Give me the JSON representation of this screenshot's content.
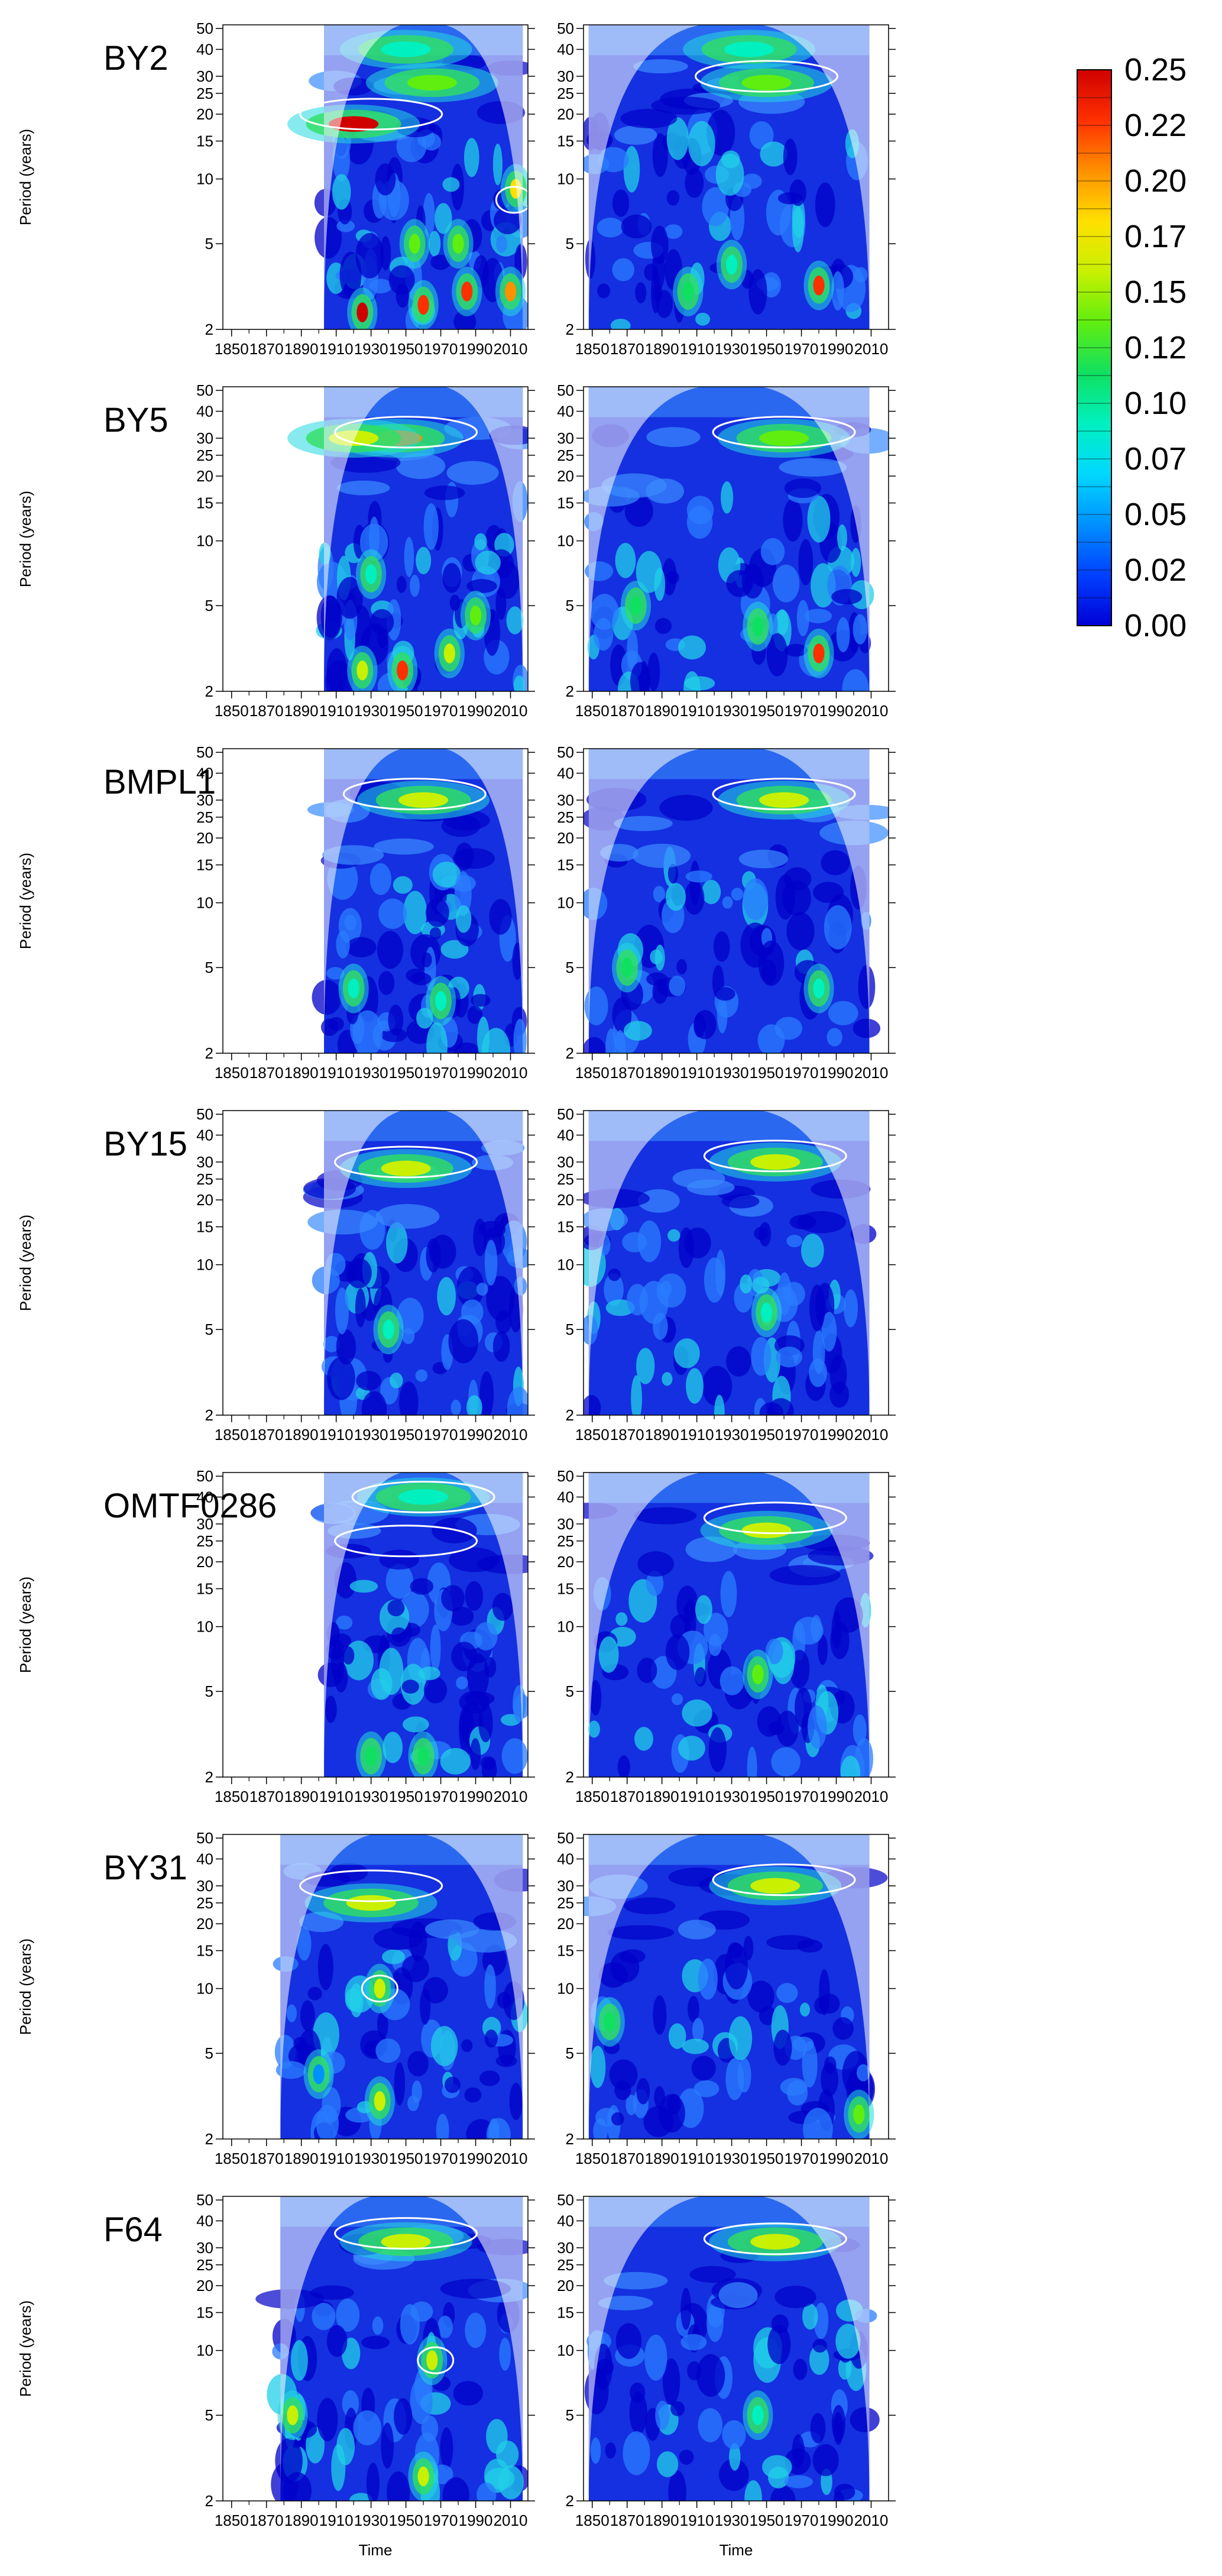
{
  "figure": {
    "time_label": "Time",
    "period_label": "Period (years)"
  },
  "colorbar": {
    "ticks": [
      "0.25",
      "0.22",
      "0.20",
      "0.17",
      "0.15",
      "0.12",
      "0.10",
      "0.07",
      "0.05",
      "0.02",
      "0.00"
    ],
    "range": [
      0,
      0.25
    ],
    "colors": [
      "#0000d6",
      "#0040ff",
      "#0090ff",
      "#00d8ff",
      "#00f0c0",
      "#10e060",
      "#60ee10",
      "#c8f000",
      "#ffe000",
      "#ff9000",
      "#ff3000",
      "#d00000"
    ]
  },
  "chart_data": {
    "type": "heatmap",
    "description_type": "wavelet power spectra",
    "x_tick_labels": [
      "1850",
      "1870",
      "1890",
      "1910",
      "1930",
      "1950",
      "1970",
      "1990",
      "2010"
    ],
    "y_tick_labels": [
      "50",
      "40",
      "30",
      "25",
      "20",
      "15",
      "10",
      "5",
      "2"
    ],
    "y_scale": "log",
    "xlim": [
      1845,
      2020
    ],
    "ylim": [
      2,
      52
    ],
    "xlabel": "Time",
    "ylabel": "Period (years)",
    "rows": [
      {
        "label": "BY2",
        "left": {
          "start": 1903,
          "end": 2017,
          "coi_peak": 1960,
          "hotspots": [
            {
              "x": 1920,
              "p": 18,
              "v": 0.25
            },
            {
              "x": 1925,
              "p": 2.4,
              "v": 0.24
            },
            {
              "x": 1960,
              "p": 2.6,
              "v": 0.22
            },
            {
              "x": 1985,
              "p": 3.0,
              "v": 0.22
            },
            {
              "x": 2010,
              "p": 3.0,
              "v": 0.2
            },
            {
              "x": 1965,
              "p": 28,
              "v": 0.14
            },
            {
              "x": 1950,
              "p": 40,
              "v": 0.1
            },
            {
              "x": 1955,
              "p": 5,
              "v": 0.13
            },
            {
              "x": 1980,
              "p": 5,
              "v": 0.14
            },
            {
              "x": 2013,
              "p": 9,
              "v": 0.18
            }
          ],
          "significant": [
            {
              "x": 1930,
              "p": 20
            },
            {
              "x": 2012,
              "p": 8
            }
          ]
        },
        "right": {
          "start": 1848,
          "end": 2009,
          "coi_peak": 1930,
          "hotspots": [
            {
              "x": 1950,
              "p": 28,
              "v": 0.14
            },
            {
              "x": 1980,
              "p": 3.2,
              "v": 0.22
            },
            {
              "x": 1905,
              "p": 3.0,
              "v": 0.12
            },
            {
              "x": 1930,
              "p": 4,
              "v": 0.1
            },
            {
              "x": 1940,
              "p": 40,
              "v": 0.08
            }
          ],
          "significant": [
            {
              "x": 1950,
              "p": 30
            }
          ]
        }
      },
      {
        "label": "BY5",
        "left": {
          "start": 1903,
          "end": 2017,
          "coi_peak": 1960,
          "hotspots": [
            {
              "x": 1945,
              "p": 30,
              "v": 0.21
            },
            {
              "x": 1920,
              "p": 30,
              "v": 0.15
            },
            {
              "x": 1948,
              "p": 2.5,
              "v": 0.22
            },
            {
              "x": 1925,
              "p": 2.5,
              "v": 0.17
            },
            {
              "x": 1975,
              "p": 3,
              "v": 0.15
            },
            {
              "x": 1930,
              "p": 7,
              "v": 0.1
            },
            {
              "x": 1990,
              "p": 4.5,
              "v": 0.14
            }
          ],
          "significant": [
            {
              "x": 1950,
              "p": 32
            }
          ]
        },
        "right": {
          "start": 1848,
          "end": 2009,
          "coi_peak": 1930,
          "hotspots": [
            {
              "x": 1960,
              "p": 30,
              "v": 0.14
            },
            {
              "x": 1980,
              "p": 3.0,
              "v": 0.22
            },
            {
              "x": 1875,
              "p": 5,
              "v": 0.12
            },
            {
              "x": 1945,
              "p": 4,
              "v": 0.12
            }
          ],
          "significant": [
            {
              "x": 1960,
              "p": 32
            }
          ]
        }
      },
      {
        "label": "BMPL1",
        "left": {
          "start": 1903,
          "end": 2017,
          "coi_peak": 1960,
          "hotspots": [
            {
              "x": 1960,
              "p": 30,
              "v": 0.16
            },
            {
              "x": 1920,
              "p": 4,
              "v": 0.1
            },
            {
              "x": 1970,
              "p": 3.5,
              "v": 0.1
            }
          ],
          "significant": [
            {
              "x": 1955,
              "p": 32
            }
          ]
        },
        "right": {
          "start": 1848,
          "end": 2009,
          "coi_peak": 1930,
          "hotspots": [
            {
              "x": 1960,
              "p": 30,
              "v": 0.15
            },
            {
              "x": 1870,
              "p": 5,
              "v": 0.12
            },
            {
              "x": 1980,
              "p": 4,
              "v": 0.1
            }
          ],
          "significant": [
            {
              "x": 1960,
              "p": 32
            }
          ]
        }
      },
      {
        "label": "BY15",
        "left": {
          "start": 1903,
          "end": 2017,
          "coi_peak": 1960,
          "hotspots": [
            {
              "x": 1950,
              "p": 28,
              "v": 0.15
            },
            {
              "x": 1940,
              "p": 5,
              "v": 0.09
            }
          ],
          "significant": [
            {
              "x": 1950,
              "p": 30
            }
          ]
        },
        "right": {
          "start": 1848,
          "end": 2009,
          "coi_peak": 1930,
          "hotspots": [
            {
              "x": 1955,
              "p": 30,
              "v": 0.15
            },
            {
              "x": 1950,
              "p": 6,
              "v": 0.09
            }
          ],
          "significant": [
            {
              "x": 1955,
              "p": 32
            }
          ]
        }
      },
      {
        "label": "OMTF0286",
        "left": {
          "start": 1903,
          "end": 2017,
          "coi_peak": 1960,
          "hotspots": [
            {
              "x": 1960,
              "p": 40,
              "v": 0.08
            },
            {
              "x": 1930,
              "p": 2.5,
              "v": 0.12
            },
            {
              "x": 1960,
              "p": 2.5,
              "v": 0.12
            }
          ],
          "significant": [
            {
              "x": 1960,
              "p": 40
            },
            {
              "x": 1950,
              "p": 25
            }
          ]
        },
        "right": {
          "start": 1848,
          "end": 2009,
          "coi_peak": 1930,
          "hotspots": [
            {
              "x": 1950,
              "p": 28,
              "v": 0.15
            },
            {
              "x": 1945,
              "p": 6,
              "v": 0.14
            }
          ],
          "significant": [
            {
              "x": 1955,
              "p": 32
            }
          ]
        }
      },
      {
        "label": "BY31",
        "left": {
          "start": 1878,
          "end": 2017,
          "coi_peak": 1945,
          "hotspots": [
            {
              "x": 1930,
              "p": 25,
              "v": 0.16
            },
            {
              "x": 1935,
              "p": 10,
              "v": 0.17
            },
            {
              "x": 1935,
              "p": 3,
              "v": 0.17
            },
            {
              "x": 1900,
              "p": 4,
              "v": 0.05
            }
          ],
          "significant": [
            {
              "x": 1930,
              "p": 30
            },
            {
              "x": 1935,
              "p": 10
            }
          ]
        },
        "right": {
          "start": 1848,
          "end": 2009,
          "coi_peak": 1930,
          "hotspots": [
            {
              "x": 1955,
              "p": 30,
              "v": 0.15
            },
            {
              "x": 1860,
              "p": 7,
              "v": 0.12
            },
            {
              "x": 2003,
              "p": 2.6,
              "v": 0.13
            }
          ],
          "significant": [
            {
              "x": 1960,
              "p": 32
            }
          ]
        }
      },
      {
        "label": "F64",
        "left": {
          "start": 1878,
          "end": 2017,
          "coi_peak": 1945,
          "hotspots": [
            {
              "x": 1950,
              "p": 32,
              "v": 0.16
            },
            {
              "x": 1885,
              "p": 5,
              "v": 0.17
            },
            {
              "x": 1965,
              "p": 9,
              "v": 0.16
            },
            {
              "x": 1960,
              "p": 2.6,
              "v": 0.15
            }
          ],
          "significant": [
            {
              "x": 1950,
              "p": 35
            },
            {
              "x": 1967,
              "p": 9
            }
          ]
        },
        "right": {
          "start": 1848,
          "end": 2009,
          "coi_peak": 1930,
          "hotspots": [
            {
              "x": 1955,
              "p": 32,
              "v": 0.15
            },
            {
              "x": 1945,
              "p": 5,
              "v": 0.08
            }
          ],
          "significant": [
            {
              "x": 1955,
              "p": 33
            }
          ]
        }
      }
    ]
  }
}
